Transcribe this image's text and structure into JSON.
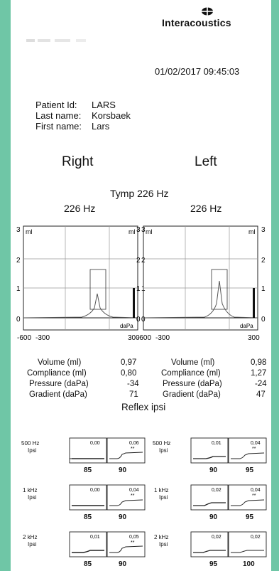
{
  "header": {
    "brand": "Interacoustics",
    "datetime": "01/02/2017  09:45:03"
  },
  "patient": [
    {
      "label": "Patient Id:",
      "value": "LARS"
    },
    {
      "label": "Last name:",
      "value": "Korsbaek"
    },
    {
      "label": "First name:",
      "value": "Lars"
    }
  ],
  "sides": {
    "right": "Right",
    "left": "Left"
  },
  "tymp": {
    "title": "Tymp 226 Hz",
    "right_freq": "226 Hz",
    "left_freq": "226 Hz",
    "y_ticks": [
      "3",
      "2",
      "1",
      "0"
    ],
    "x_ticks": [
      "-600",
      "-300",
      "300"
    ],
    "unit_ml": "ml",
    "unit_dapa": "daPa"
  },
  "chart_data": [
    {
      "type": "line",
      "title": "226 Hz",
      "side": "Right",
      "x_range": [
        -600,
        300
      ],
      "ylim": [
        0,
        3
      ],
      "volume_ml": 0.97,
      "peak_pressure_dapa": -34,
      "peak_compliance_ml": 0.8
    },
    {
      "type": "line",
      "title": "226 Hz",
      "side": "Left",
      "x_range": [
        -600,
        300
      ],
      "ylim": [
        0,
        3
      ],
      "volume_ml": 0.98,
      "peak_pressure_dapa": -24,
      "peak_compliance_ml": 1.27
    }
  ],
  "results": {
    "right": [
      {
        "label": "Volume (ml)",
        "value": "0,97"
      },
      {
        "label": "Compliance (ml)",
        "value": "0,80"
      },
      {
        "label": "Pressure (daPa)",
        "value": "-34"
      },
      {
        "label": "Gradient (daPa)",
        "value": "71"
      }
    ],
    "left": [
      {
        "label": "Volume (ml)",
        "value": "0,98"
      },
      {
        "label": "Compliance (ml)",
        "value": "1,27"
      },
      {
        "label": "Pressure (daPa)",
        "value": "-24"
      },
      {
        "label": "Gradient (daPa)",
        "value": "47"
      }
    ]
  },
  "reflex": {
    "title": "Reflex ipsi",
    "right": [
      {
        "freq": "500 Hz",
        "mode": "Ipsi",
        "v1": "0,00",
        "v2": "0,06",
        "mark2": "**",
        "level1": "85",
        "level2": "90"
      },
      {
        "freq": "1 kHz",
        "mode": "Ipsi",
        "v1": "0,00",
        "v2": "0,04",
        "mark2": "**",
        "level1": "85",
        "level2": "90"
      },
      {
        "freq": "2 kHz",
        "mode": "Ipsi",
        "v1": "0,01",
        "v2": "0,05",
        "mark2": "**",
        "level1": "85",
        "level2": "90"
      }
    ],
    "left": [
      {
        "freq": "500 Hz",
        "mode": "Ipsi",
        "v1": "0,01",
        "v2": "0,04",
        "mark2": "**",
        "level1": "90",
        "level2": "95"
      },
      {
        "freq": "1 kHz",
        "mode": "Ipsi",
        "v1": "0,02",
        "v2": "0,04",
        "mark2": "**",
        "level1": "90",
        "level2": "95"
      },
      {
        "freq": "2 kHz",
        "mode": "Ipsi",
        "v1": "0,02",
        "v2": "0,02",
        "mark2": "",
        "level1": "95",
        "level2": "100"
      }
    ]
  }
}
